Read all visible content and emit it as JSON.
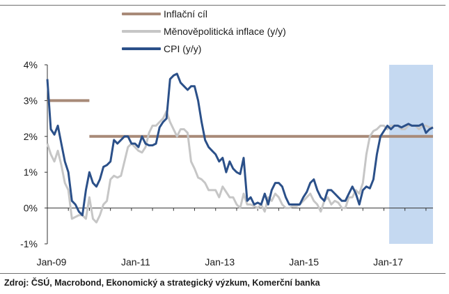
{
  "chart_data": {
    "type": "line",
    "legend": [
      {
        "name": "Inflační cíl",
        "color": "#a88a78"
      },
      {
        "name": "Měnověpolitická inflace (y/y)",
        "color": "#c6c6c6"
      },
      {
        "name": "CPI (y/y)",
        "color": "#2b5089"
      }
    ],
    "ylim": [
      -1,
      4
    ],
    "y_ticks": [
      "4%",
      "3%",
      "2%",
      "1%",
      "0%",
      "-1%"
    ],
    "x_ticks": [
      "Jan-09",
      "Jan-11",
      "Jan-13",
      "Jan-15",
      "Jan-17"
    ],
    "x_tick_months": [
      0,
      24,
      48,
      72,
      96
    ],
    "forecast_shading_month_range": [
      97.5,
      110
    ],
    "series": [
      {
        "name": "Inflační cíl",
        "color": "#a88a78",
        "segments": [
          {
            "x": [
              0,
              12
            ],
            "y": [
              3.0,
              3.0
            ]
          },
          {
            "x": [
              12,
              110
            ],
            "y": [
              2.0,
              2.0
            ]
          }
        ]
      },
      {
        "name": "Měnověpolitická inflace (y/y)",
        "color": "#c6c6c6",
        "x": [
          0,
          1,
          2,
          3,
          4,
          5,
          6,
          7,
          8,
          9,
          10,
          11,
          12,
          13,
          14,
          15,
          16,
          17,
          18,
          19,
          20,
          21,
          22,
          23,
          24,
          25,
          26,
          27,
          28,
          29,
          30,
          31,
          32,
          33,
          34,
          35,
          36,
          37,
          38,
          39,
          40,
          41,
          42,
          43,
          44,
          45,
          46,
          47,
          48,
          49,
          50,
          51,
          52,
          53,
          54,
          55,
          56,
          57,
          58,
          59,
          60,
          61,
          62,
          63,
          64,
          65,
          66,
          67,
          68,
          69,
          70,
          71,
          72,
          73,
          74,
          75,
          76,
          77,
          78,
          79,
          80,
          81,
          82,
          83,
          84,
          85,
          86,
          87,
          88,
          89,
          90,
          91,
          92,
          93,
          94,
          95,
          96,
          97,
          98,
          99,
          100,
          101,
          102,
          103,
          104,
          105,
          106,
          107,
          108,
          109,
          110
        ],
        "values": [
          1.8,
          1.5,
          1.3,
          1.6,
          1.2,
          0.7,
          0.5,
          -0.3,
          -0.25,
          -0.2,
          -0.2,
          -0.3,
          0.3,
          -0.3,
          -0.4,
          -0.2,
          0.1,
          0.2,
          0.8,
          0.9,
          0.85,
          0.9,
          1.3,
          1.7,
          1.8,
          1.7,
          1.6,
          1.55,
          1.7,
          2.1,
          2.3,
          2.3,
          2.4,
          2.5,
          2.7,
          2.4,
          2.2,
          2.0,
          2.2,
          2.2,
          2.1,
          1.3,
          1.1,
          0.85,
          0.8,
          0.7,
          0.5,
          0.5,
          0.5,
          0.3,
          0.6,
          0.45,
          0.3,
          0.3,
          0.1,
          0.0,
          0.4,
          0.1,
          0.1,
          0.05,
          0.0,
          0.1,
          -0.1,
          0.3,
          0.2,
          0.4,
          0.3,
          0.1,
          0.0,
          0.0,
          0.05,
          0.05,
          0.1,
          0.2,
          0.3,
          0.4,
          0.2,
          0.1,
          -0.1,
          0.2,
          0.3,
          0.1,
          0.2,
          0.15,
          0.0,
          0.0,
          0.3,
          0.3,
          0.5,
          0.4,
          0.7,
          1.5,
          2.0,
          2.15,
          2.2,
          2.3,
          2.3,
          2.2,
          2.3,
          2.3,
          2.3,
          2.2,
          2.2,
          2.3,
          2.3,
          2.3,
          2.2,
          2.3,
          2.3,
          2.25,
          2.25
        ]
      },
      {
        "name": "CPI (y/y)",
        "color": "#2b5089",
        "x": [
          0,
          1,
          2,
          3,
          4,
          5,
          6,
          7,
          8,
          9,
          10,
          11,
          12,
          13,
          14,
          15,
          16,
          17,
          18,
          19,
          20,
          21,
          22,
          23,
          24,
          25,
          26,
          27,
          28,
          29,
          30,
          31,
          32,
          33,
          34,
          35,
          36,
          37,
          38,
          39,
          40,
          41,
          42,
          43,
          44,
          45,
          46,
          47,
          48,
          49,
          50,
          51,
          52,
          53,
          54,
          55,
          56,
          57,
          58,
          59,
          60,
          61,
          62,
          63,
          64,
          65,
          66,
          67,
          68,
          69,
          70,
          71,
          72,
          73,
          74,
          75,
          76,
          77,
          78,
          79,
          80,
          81,
          82,
          83,
          84,
          85,
          86,
          87,
          88,
          89,
          90,
          91,
          92,
          93,
          94,
          95,
          96,
          97,
          98,
          99,
          100,
          101,
          102,
          103,
          104,
          105,
          106,
          107,
          108,
          109,
          110
        ],
        "values": [
          3.6,
          2.2,
          2.05,
          2.3,
          1.8,
          1.3,
          1.0,
          0.2,
          0.1,
          -0.1,
          -0.2,
          0.5,
          1.0,
          0.7,
          0.6,
          0.8,
          1.15,
          1.2,
          1.3,
          1.9,
          1.8,
          1.9,
          2.0,
          2.0,
          1.8,
          1.8,
          1.7,
          2.0,
          1.8,
          1.75,
          1.75,
          1.8,
          2.25,
          2.4,
          2.5,
          3.6,
          3.7,
          3.75,
          3.5,
          3.4,
          3.3,
          3.4,
          3.4,
          3.0,
          2.4,
          1.9,
          1.7,
          1.6,
          1.5,
          1.3,
          1.4,
          1.0,
          1.3,
          1.1,
          1.0,
          0.95,
          1.4,
          0.2,
          0.3,
          0.1,
          0.15,
          0.1,
          0.4,
          0.1,
          0.5,
          0.7,
          0.7,
          0.6,
          0.3,
          0.1,
          0.1,
          0.1,
          0.1,
          0.3,
          0.45,
          0.7,
          0.8,
          0.5,
          0.3,
          0.2,
          0.5,
          0.5,
          0.4,
          0.3,
          0.2,
          0.2,
          0.4,
          0.6,
          0.4,
          0.1,
          0.5,
          0.6,
          0.55,
          0.8,
          1.5,
          2.0,
          2.15,
          2.3,
          2.2,
          2.3,
          2.3,
          2.25,
          2.3,
          2.35,
          2.3,
          2.3,
          2.3,
          2.35,
          2.1,
          2.2,
          2.25
        ]
      }
    ]
  },
  "source_text": "Zdroj: ČSÚ, Macrobond, Ekonomický a strategický výzkum, Komerční banka"
}
